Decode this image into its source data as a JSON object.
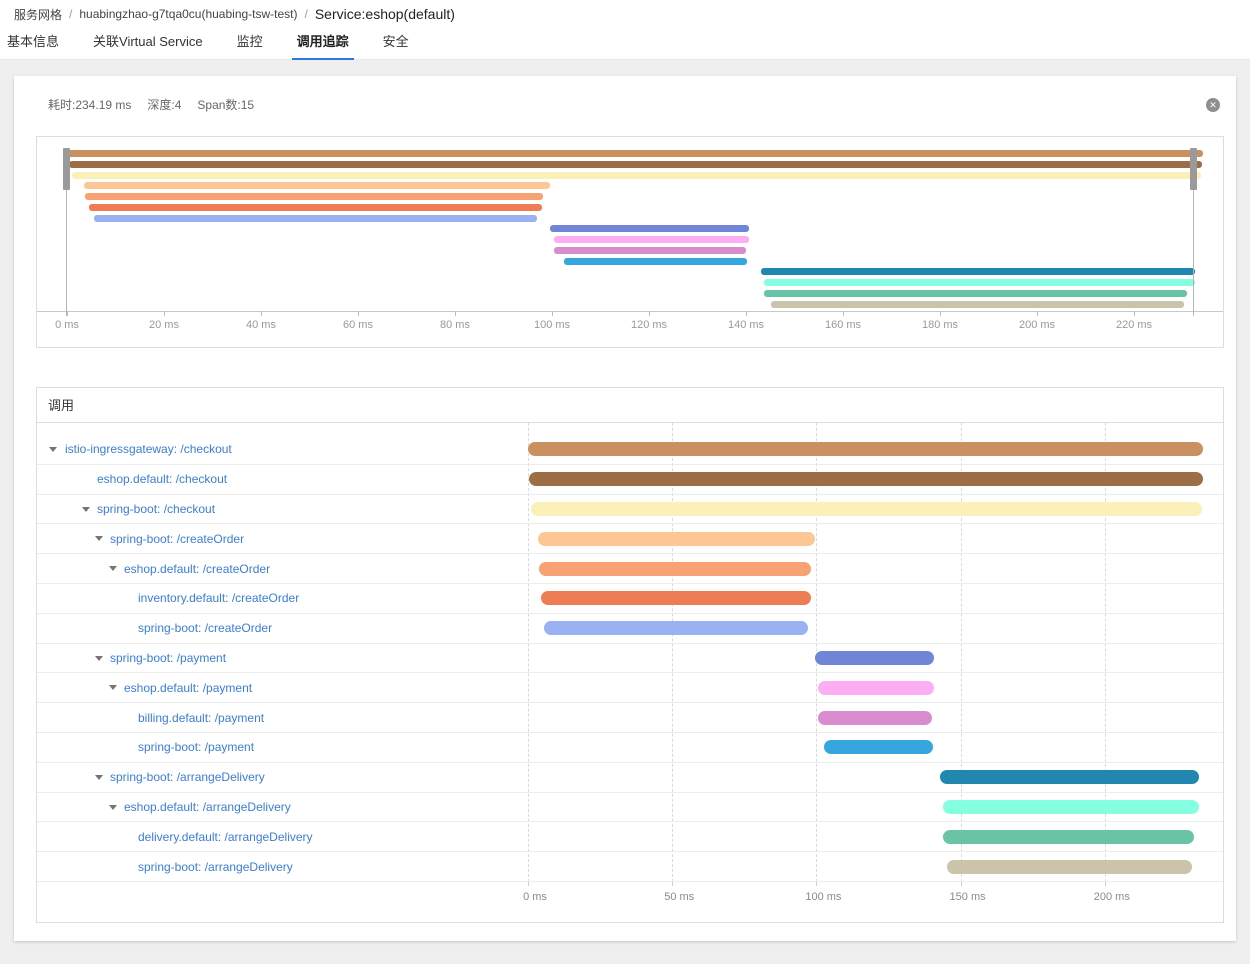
{
  "breadcrumb": {
    "separator": "/",
    "items": [
      {
        "label": "服务网格",
        "current": false
      },
      {
        "label": "huabingzhao-g7tqa0cu(huabing-tsw-test)",
        "current": false
      },
      {
        "label": "Service:eshop(default)",
        "current": true
      }
    ]
  },
  "tabs": [
    {
      "label": "基本信息",
      "active": false
    },
    {
      "label": "关联Virtual Service",
      "active": false
    },
    {
      "label": "监控",
      "active": false
    },
    {
      "label": "调用追踪",
      "active": true
    },
    {
      "label": "安全",
      "active": false
    }
  ],
  "trace_panel": {
    "summary": [
      {
        "label": "耗时:234.19 ms"
      },
      {
        "label": "深度:4"
      },
      {
        "label": "Span数:15"
      }
    ],
    "close_glyph": "✕",
    "duration_ms": 234.19,
    "minimap_axis": {
      "tick_interval_ms": 20,
      "ticks": [
        "0 ms",
        "20 ms",
        "40 ms",
        "60 ms",
        "80 ms",
        "100 ms",
        "120 ms",
        "140 ms",
        "160 ms",
        "180 ms",
        "200 ms",
        "220 ms"
      ]
    },
    "waterfall": {
      "title": "调用",
      "tick_interval_ms": 50,
      "ticks": [
        "0 ms",
        "50 ms",
        "100 ms",
        "150 ms",
        "200 ms"
      ]
    },
    "spans": [
      {
        "name": "istio-ingressgateway: /checkout",
        "level": 0,
        "expandable": true,
        "start_ms": 0,
        "end_ms": 234.19,
        "color": "#c8915f"
      },
      {
        "name": "eshop.default: /checkout",
        "level": 1,
        "expandable": false,
        "start_ms": 0.4,
        "end_ms": 234.0,
        "color": "#9d6e45"
      },
      {
        "name": "spring-boot: /checkout",
        "level": 1,
        "expandable": true,
        "start_ms": 1.0,
        "end_ms": 233.8,
        "color": "#faf0b8"
      },
      {
        "name": "spring-boot: /createOrder",
        "level": 2,
        "expandable": true,
        "start_ms": 3.5,
        "end_ms": 99.5,
        "color": "#fcc795"
      },
      {
        "name": "eshop.default: /createOrder",
        "level": 3,
        "expandable": true,
        "start_ms": 3.8,
        "end_ms": 98.1,
        "color": "#f8a173"
      },
      {
        "name": "inventory.default: /createOrder",
        "level": 4,
        "expandable": false,
        "start_ms": 4.5,
        "end_ms": 98.0,
        "color": "#ee7d55"
      },
      {
        "name": "spring-boot: /createOrder",
        "level": 4,
        "expandable": false,
        "start_ms": 5.6,
        "end_ms": 97.0,
        "color": "#9ab1f2"
      },
      {
        "name": "spring-boot: /payment",
        "level": 2,
        "expandable": true,
        "start_ms": 99.5,
        "end_ms": 140.7,
        "color": "#7085d8"
      },
      {
        "name": "eshop.default: /payment",
        "level": 3,
        "expandable": true,
        "start_ms": 100.5,
        "end_ms": 140.7,
        "color": "#fbaff2"
      },
      {
        "name": "billing.default: /payment",
        "level": 4,
        "expandable": false,
        "start_ms": 100.5,
        "end_ms": 140.0,
        "color": "#d98ccd"
      },
      {
        "name": "spring-boot: /payment",
        "level": 4,
        "expandable": false,
        "start_ms": 102.5,
        "end_ms": 140.3,
        "color": "#35a7de"
      },
      {
        "name": "spring-boot: /arrangeDelivery",
        "level": 2,
        "expandable": true,
        "start_ms": 143.0,
        "end_ms": 232.5,
        "color": "#2187ae"
      },
      {
        "name": "eshop.default: /arrangeDelivery",
        "level": 3,
        "expandable": true,
        "start_ms": 143.8,
        "end_ms": 232.5,
        "color": "#85ffdf"
      },
      {
        "name": "delivery.default: /arrangeDelivery",
        "level": 4,
        "expandable": false,
        "start_ms": 143.8,
        "end_ms": 231.0,
        "color": "#69c3a4"
      },
      {
        "name": "spring-boot: /arrangeDelivery",
        "level": 4,
        "expandable": false,
        "start_ms": 145.2,
        "end_ms": 230.4,
        "color": "#ccc3ab"
      }
    ]
  },
  "colors": {
    "accent_blue": "#2a7ae4",
    "link_blue": "#3b7dd8",
    "handle_gray": "#9a9a9a"
  }
}
